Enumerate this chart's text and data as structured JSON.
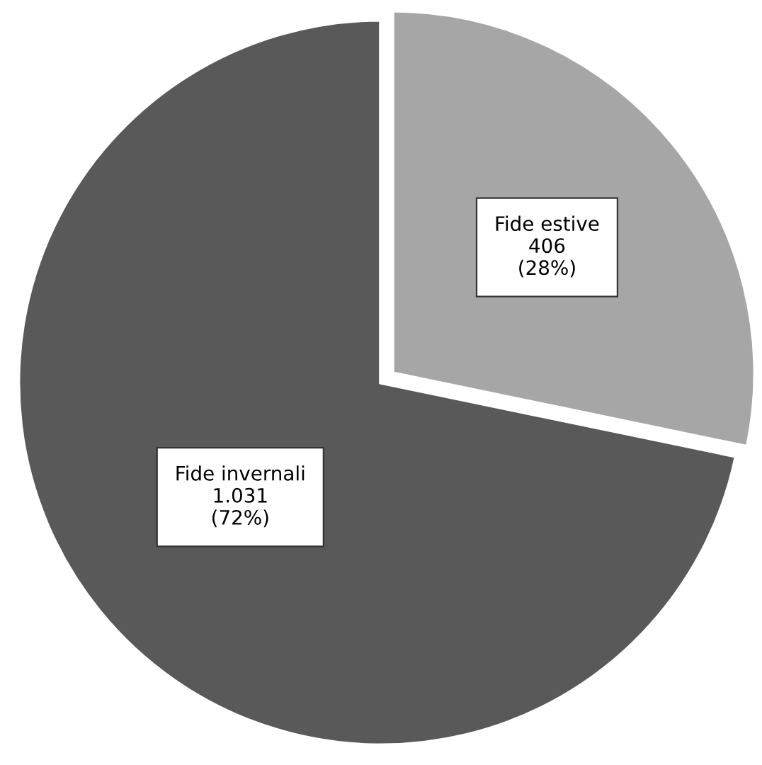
{
  "chart_data": {
    "type": "pie",
    "categories": [
      "Fide estive",
      "Fide invernali"
    ],
    "values": [
      406,
      1031
    ],
    "value_labels": [
      "406\n(28%)",
      "1.031\n(72%)"
    ],
    "colors": [
      "#a6a6a6",
      "#595959"
    ]
  }
}
